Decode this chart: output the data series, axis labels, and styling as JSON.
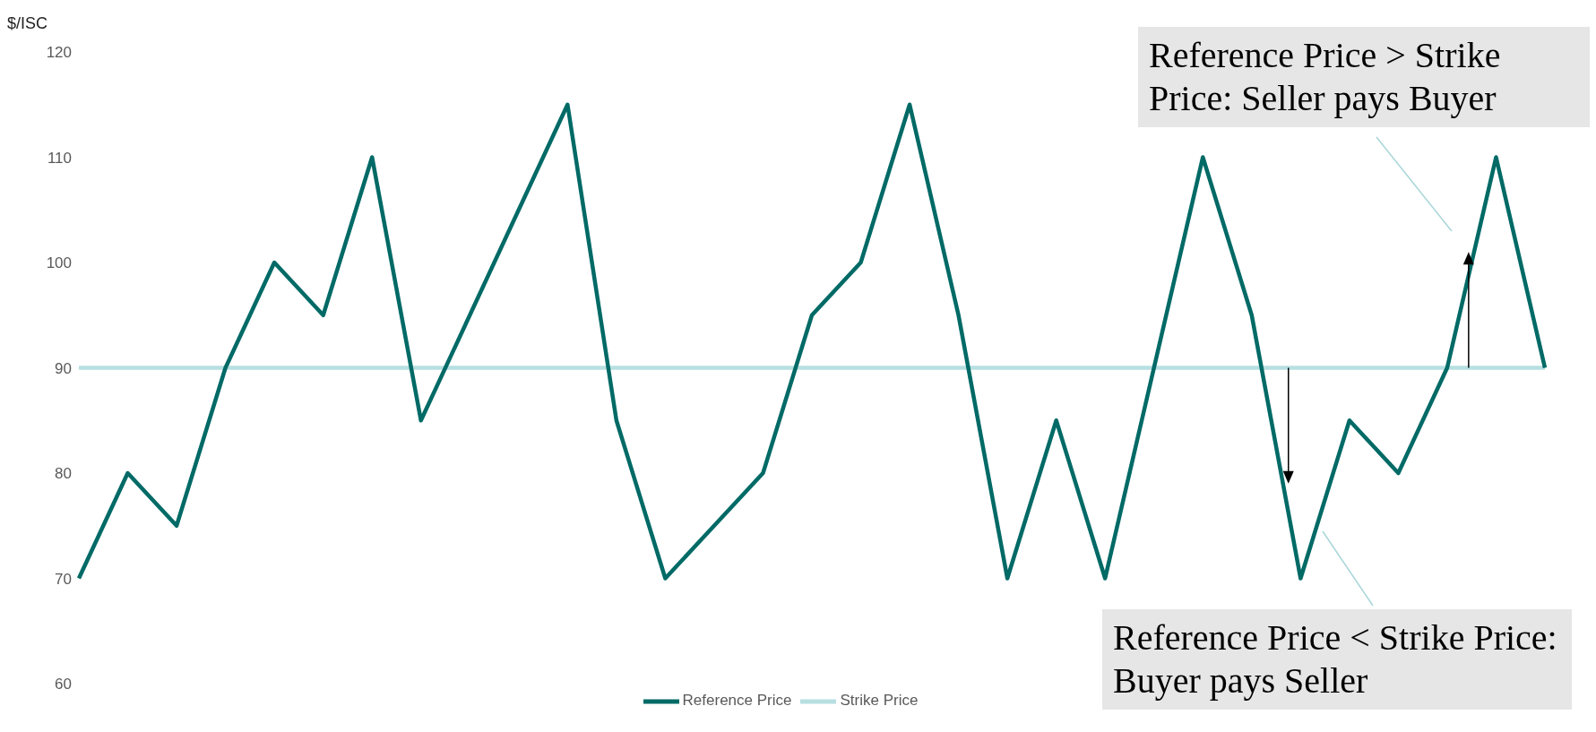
{
  "chart_data": {
    "type": "line",
    "ylabel": "$/ISC",
    "categories": [
      null,
      null,
      null,
      null,
      null,
      null,
      null,
      null,
      null,
      null,
      null,
      null,
      null,
      null,
      null,
      null,
      null,
      null,
      null,
      null,
      null,
      null,
      null,
      null,
      null,
      null,
      null,
      null,
      null,
      null,
      null
    ],
    "series": [
      {
        "name": "Strike Price",
        "color": "#b7dfe1",
        "values": [
          90,
          90,
          90,
          90,
          90,
          90,
          90,
          90,
          90,
          90,
          90,
          90,
          90,
          90,
          90,
          90,
          90,
          90,
          90,
          90,
          90,
          90,
          90,
          90,
          90,
          90,
          90,
          90,
          90,
          90,
          90
        ]
      },
      {
        "name": "Reference Price",
        "color": "#006a66",
        "values": [
          70,
          80,
          75,
          90,
          100,
          95,
          110,
          85,
          95,
          105,
          115,
          85,
          70,
          75,
          80,
          95,
          100,
          115,
          95,
          70,
          85,
          70,
          90,
          110,
          95,
          70,
          85,
          80,
          90,
          110,
          90
        ]
      }
    ],
    "ylim": [
      60,
      120
    ],
    "yticks": [
      60,
      70,
      80,
      90,
      100,
      110,
      120
    ],
    "grid": false,
    "legend": "bottom",
    "marker": "none",
    "line_style": "solid",
    "annotations": [
      "Reference Price > Strike Price: Seller pays Buyer",
      "Reference Price < Strike Price: Buyer pays Seller"
    ]
  }
}
